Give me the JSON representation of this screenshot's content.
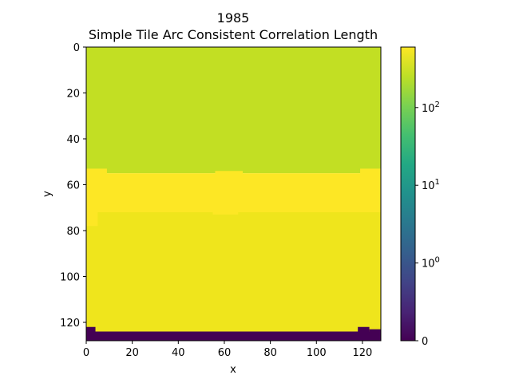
{
  "chart_data": {
    "type": "heatmap",
    "title": "1985",
    "subtitle": "Simple Tile Arc Consistent Correlation Length",
    "xlabel": "x",
    "ylabel": "y",
    "x_ticks": [
      0,
      20,
      40,
      60,
      80,
      100,
      120
    ],
    "y_ticks": [
      0,
      20,
      40,
      60,
      80,
      100,
      120
    ],
    "xlim": [
      0,
      128
    ],
    "ylim": [
      128,
      0
    ],
    "y_axis_inverted": true,
    "colormap": "viridis",
    "colorbar": {
      "scale": "symlog",
      "ticks": [
        {
          "value": 0,
          "label": "0"
        },
        {
          "value": 1,
          "label_base": "10",
          "label_exp": "0"
        },
        {
          "value": 10,
          "label_base": "10",
          "label_exp": "1"
        },
        {
          "value": 100,
          "label_base": "10",
          "label_exp": "2"
        }
      ],
      "range": [
        0,
        600
      ]
    },
    "regions": [
      {
        "name": "upper band",
        "y_range": [
          0,
          55
        ],
        "value": 200,
        "color": "#c2df23"
      },
      {
        "name": "bright band",
        "y_range": [
          55,
          72
        ],
        "value": 600,
        "color": "#fde725"
      },
      {
        "name": "lower band",
        "y_range": [
          72,
          124
        ],
        "value": 480,
        "color": "#efe51c"
      },
      {
        "name": "bottom edge",
        "y_range": [
          124,
          128
        ],
        "value": 0,
        "color": "#440154"
      }
    ],
    "colors": {
      "min": "#440154",
      "max": "#fde725"
    }
  }
}
